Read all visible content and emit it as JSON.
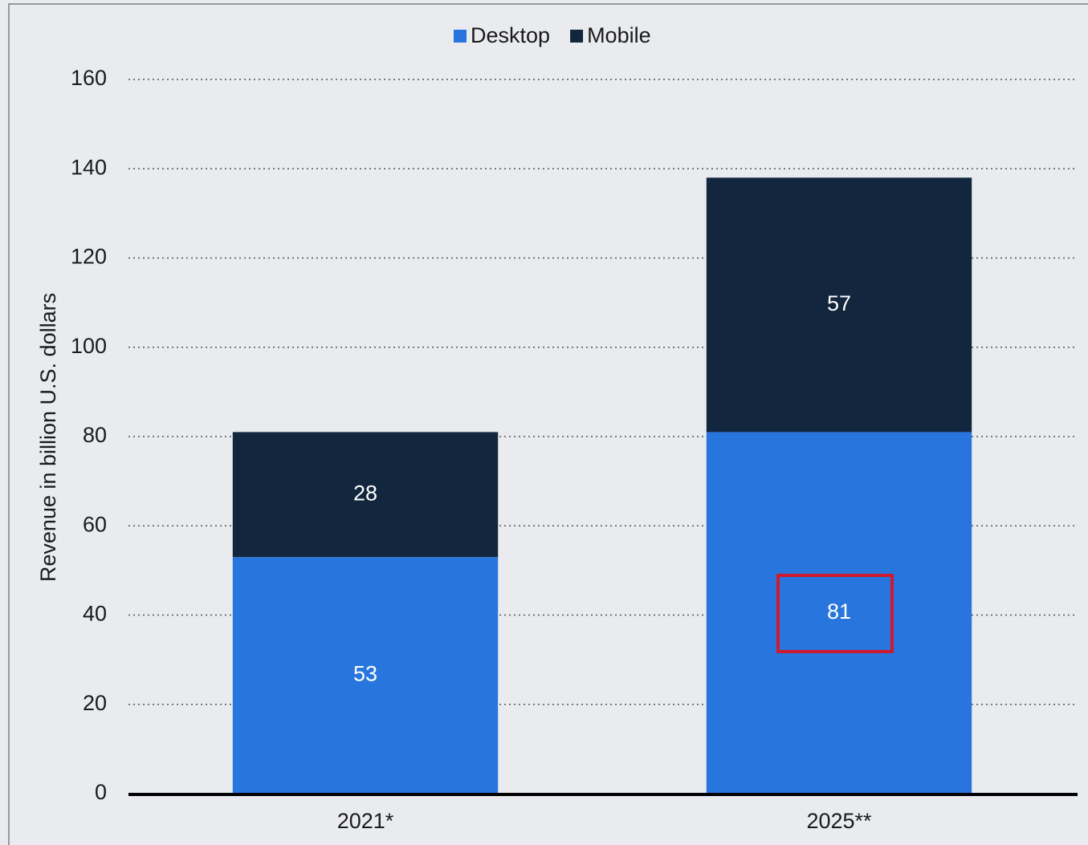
{
  "chart_data": {
    "type": "stacked_bar",
    "categories": [
      "2021*",
      "2025**"
    ],
    "series": [
      {
        "name": "Desktop",
        "color": "#2876dd",
        "values": [
          53,
          81
        ]
      },
      {
        "name": "Mobile",
        "color": "#12263e",
        "values": [
          28,
          57
        ]
      }
    ],
    "y_label": "Revenue in billion U.S. dollars",
    "ylim": [
      0,
      160
    ],
    "yticks": [
      0,
      20,
      40,
      60,
      80,
      100,
      120,
      140,
      160
    ],
    "grid": true,
    "legend": "top"
  }
}
